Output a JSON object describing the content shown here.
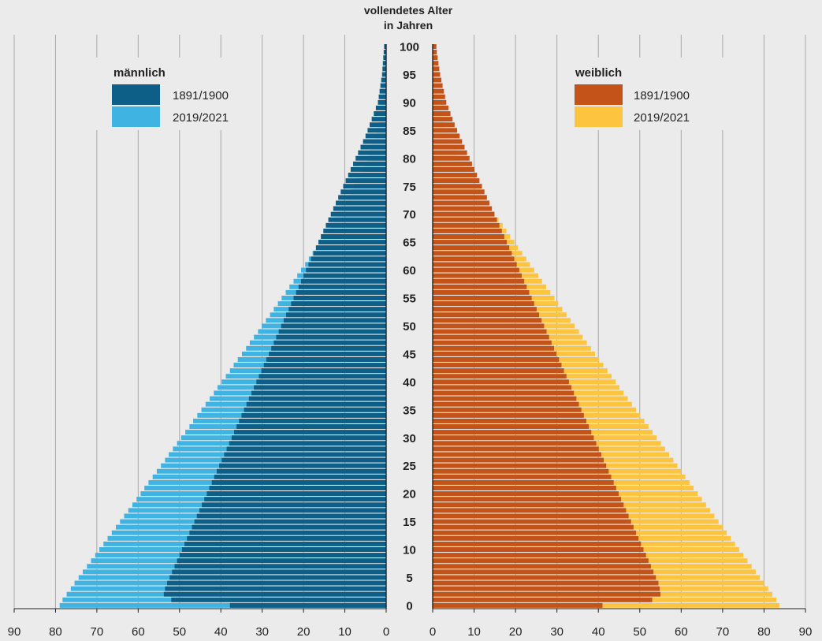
{
  "chart_data": {
    "type": "bar",
    "subtype": "population-pyramid",
    "title_lines": [
      "vollendetes Alter",
      "in Jahren"
    ],
    "x_ticks": [
      0,
      10,
      20,
      30,
      40,
      50,
      60,
      70,
      80,
      90
    ],
    "xlim": [
      0,
      90
    ],
    "age_range": [
      0,
      100
    ],
    "age_label_step": 5,
    "grid": true,
    "panels": [
      {
        "key": "male",
        "side": "left",
        "legend_title": "männlich",
        "legend_placement": "top-left",
        "series": [
          {
            "name": "1891/1900",
            "color": "#0e5f87",
            "values": [
              37.8,
              52.0,
              53.8,
              53.5,
              53.0,
              52.4,
              51.8,
              51.2,
              50.6,
              50.0,
              49.4,
              48.8,
              48.2,
              47.6,
              47.0,
              46.4,
              45.8,
              45.2,
              44.6,
              44.0,
              43.4,
              42.8,
              42.2,
              41.6,
              41.0,
              40.4,
              39.8,
              39.2,
              38.6,
              38.0,
              37.4,
              36.8,
              36.2,
              35.6,
              35.0,
              34.4,
              33.8,
              33.2,
              32.6,
              32.0,
              31.4,
              30.8,
              30.2,
              29.6,
              29.0,
              28.4,
              27.8,
              27.2,
              26.6,
              26.0,
              25.4,
              24.8,
              24.2,
              23.6,
              23.0,
              22.4,
              21.8,
              21.2,
              20.6,
              20.0,
              19.4,
              18.8,
              18.2,
              17.6,
              17.0,
              16.4,
              15.8,
              15.2,
              14.6,
              14.0,
              13.4,
              12.8,
              12.2,
              11.6,
              11.0,
              10.4,
              9.8,
              9.2,
              8.6,
              8.0,
              7.4,
              6.8,
              6.2,
              5.6,
              5.0,
              4.5,
              4.0,
              3.5,
              3.0,
              2.5,
              2.0,
              1.8,
              1.6,
              1.4,
              1.2,
              1.0,
              0.9,
              0.8,
              0.7,
              0.6,
              0.5
            ]
          },
          {
            "name": "2019/2021",
            "color": "#3fb3e2",
            "values": [
              79.0,
              78.3,
              77.3,
              76.3,
              75.4,
              74.4,
              73.4,
              72.4,
              71.4,
              70.4,
              69.4,
              68.4,
              67.4,
              66.4,
              65.4,
              64.4,
              63.4,
              62.4,
              61.4,
              60.4,
              59.4,
              58.5,
              57.5,
              56.5,
              55.5,
              54.5,
              53.5,
              52.6,
              51.6,
              50.6,
              49.6,
              48.6,
              47.6,
              46.7,
              45.7,
              44.7,
              43.7,
              42.7,
              41.7,
              40.8,
              39.8,
              38.8,
              37.8,
              36.9,
              35.9,
              34.9,
              33.9,
              33.0,
              32.0,
              31.0,
              30.1,
              29.1,
              28.1,
              27.2,
              26.2,
              25.3,
              24.3,
              23.4,
              22.4,
              21.5,
              20.6,
              19.6,
              18.7,
              17.8,
              16.9,
              16.0,
              15.1,
              14.2,
              13.4,
              12.5,
              11.7,
              10.9,
              10.1,
              9.3,
              8.5,
              7.8,
              7.1,
              6.4,
              5.7,
              5.1,
              4.5,
              4.0,
              3.5,
              3.0,
              2.6,
              2.2,
              1.9,
              1.6,
              1.4,
              1.2,
              1.0,
              0.9,
              0.8,
              0.7,
              0.6,
              0.5,
              0.45,
              0.4,
              0.35,
              0.3,
              0.25
            ]
          }
        ]
      },
      {
        "key": "female",
        "side": "right",
        "legend_title": "weiblich",
        "legend_placement": "top-right",
        "series": [
          {
            "name": "1891/1900",
            "color": "#c4531a",
            "values": [
              41.0,
              53.0,
              55.0,
              54.8,
              54.5,
              53.9,
              53.3,
              52.7,
              52.1,
              51.5,
              50.9,
              50.3,
              49.7,
              49.1,
              48.5,
              47.9,
              47.3,
              46.7,
              46.1,
              45.5,
              44.9,
              44.3,
              43.7,
              43.1,
              42.5,
              41.9,
              41.3,
              40.7,
              40.1,
              39.5,
              38.9,
              38.3,
              37.7,
              37.1,
              36.5,
              35.9,
              35.3,
              34.7,
              34.1,
              33.5,
              32.9,
              32.3,
              31.7,
              31.1,
              30.5,
              29.9,
              29.3,
              28.7,
              28.1,
              27.5,
              26.9,
              26.3,
              25.7,
              25.1,
              24.5,
              23.9,
              23.3,
              22.7,
              22.1,
              21.5,
              20.9,
              20.3,
              19.7,
              19.1,
              18.5,
              17.9,
              17.3,
              16.7,
              16.1,
              15.5,
              14.9,
              14.3,
              13.7,
              13.1,
              12.5,
              11.9,
              11.3,
              10.7,
              10.1,
              9.5,
              8.9,
              8.3,
              7.7,
              7.1,
              6.5,
              5.9,
              5.3,
              4.8,
              4.3,
              3.8,
              3.3,
              3.0,
              2.7,
              2.4,
              2.1,
              1.8,
              1.6,
              1.4,
              1.2,
              1.0,
              0.9
            ]
          },
          {
            "name": "2019/2021",
            "color": "#fdc440",
            "values": [
              83.7,
              83.0,
              82.0,
              81.0,
              80.0,
              79.0,
              78.0,
              77.0,
              76.0,
              75.0,
              74.0,
              73.0,
              72.0,
              71.0,
              70.0,
              69.0,
              68.0,
              67.0,
              66.0,
              65.0,
              64.0,
              63.0,
              62.0,
              61.0,
              60.0,
              59.1,
              58.1,
              57.1,
              56.1,
              55.1,
              54.1,
              53.1,
              52.1,
              51.1,
              50.1,
              49.1,
              48.1,
              47.1,
              46.1,
              45.1,
              44.2,
              43.2,
              42.2,
              41.2,
              40.2,
              39.2,
              38.2,
              37.2,
              36.2,
              35.3,
              34.3,
              33.3,
              32.3,
              31.3,
              30.3,
              29.4,
              28.4,
              27.4,
              26.4,
              25.5,
              24.5,
              23.5,
              22.6,
              21.6,
              20.6,
              19.7,
              18.7,
              17.8,
              16.9,
              15.9,
              15.0,
              14.1,
              13.2,
              12.3,
              11.4,
              10.5,
              9.7,
              8.8,
              8.0,
              7.2,
              6.4,
              5.7,
              5.0,
              4.4,
              3.8,
              3.3,
              2.8,
              2.4,
              2.0,
              1.7,
              1.4,
              1.2,
              1.0,
              0.85,
              0.7,
              0.6,
              0.5,
              0.4,
              0.35,
              0.3,
              0.25
            ]
          }
        ]
      }
    ]
  }
}
